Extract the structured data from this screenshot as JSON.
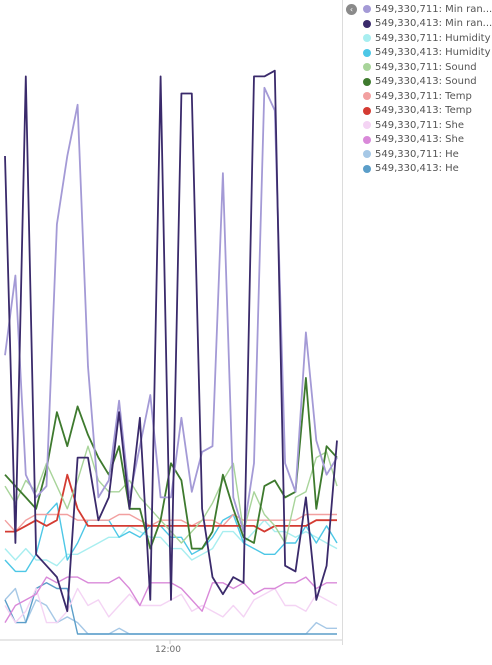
{
  "chart_data": {
    "type": "line",
    "x_ticks": [
      "12:00"
    ],
    "ylim": [
      0,
      100
    ],
    "legend_position": "right",
    "series": [
      {
        "name": "549,330,711: Min ran...",
        "color": "#a49ad6",
        "values": [
          49,
          63,
          28,
          24,
          26,
          72,
          84,
          93,
          47,
          24,
          27,
          41,
          24,
          33,
          42,
          24,
          24,
          38,
          25,
          32,
          33,
          81,
          24,
          18,
          30,
          96,
          92,
          30,
          25,
          53,
          34,
          28,
          31
        ]
      },
      {
        "name": "549,330,413: Min ran...",
        "color": "#3a2a6b",
        "values": [
          84,
          16,
          98,
          14,
          12,
          10,
          4,
          31,
          31,
          20,
          24,
          39,
          22,
          38,
          6,
          98,
          6,
          95,
          95,
          22,
          10,
          7,
          10,
          9,
          98,
          98,
          99,
          12,
          11,
          24,
          6,
          12,
          34
        ]
      },
      {
        "name": "549,330,711: Humidity",
        "color": "#a8eef0",
        "values": [
          15,
          13,
          15,
          13,
          13,
          12,
          14,
          14,
          15,
          16,
          17,
          17,
          19,
          18,
          17,
          17,
          15,
          15,
          13,
          14,
          15,
          18,
          18,
          16,
          18,
          20,
          18,
          18,
          17,
          18,
          17,
          16,
          15
        ]
      },
      {
        "name": "549,330,413: Humidity",
        "color": "#4dc7e6",
        "values": [
          13,
          11,
          11,
          14,
          21,
          23,
          13,
          16,
          20,
          20,
          20,
          17,
          18,
          17,
          19,
          19,
          17,
          17,
          14,
          15,
          17,
          20,
          21,
          16,
          15,
          14,
          14,
          16,
          16,
          19,
          16,
          19,
          16
        ]
      },
      {
        "name": "549,330,711: Sound",
        "color": "#a8d49a",
        "values": [
          26,
          23,
          27,
          25,
          30,
          26,
          22,
          27,
          33,
          27,
          25,
          25,
          27,
          24,
          22,
          20,
          18,
          16,
          18,
          20,
          23,
          27,
          30,
          18,
          25,
          21,
          19,
          16,
          24,
          25,
          31,
          32,
          26
        ]
      },
      {
        "name": "549,330,413: Sound",
        "color": "#3e7a2e",
        "values": [
          28,
          26,
          24,
          22,
          29,
          39,
          33,
          40,
          35,
          31,
          28,
          33,
          22,
          22,
          15,
          20,
          30,
          27,
          15,
          15,
          18,
          28,
          22,
          17,
          16,
          26,
          27,
          24,
          25,
          45,
          22,
          33,
          31
        ]
      },
      {
        "name": "549,330,711: Temp",
        "color": "#f2a0a0",
        "values": [
          20,
          18,
          20,
          21,
          21,
          21,
          21,
          20,
          20,
          20,
          20,
          21,
          21,
          20,
          19,
          20,
          20,
          20,
          19,
          20,
          20,
          19,
          21,
          20,
          20,
          20,
          20,
          20,
          20,
          21,
          21,
          21,
          21
        ]
      },
      {
        "name": "549,330,413: Temp",
        "color": "#d43b32",
        "values": [
          18,
          18,
          19,
          20,
          19,
          20,
          28,
          22,
          19,
          19,
          19,
          19,
          19,
          19,
          19,
          19,
          19,
          19,
          19,
          19,
          19,
          19,
          19,
          19,
          19,
          18,
          19,
          19,
          19,
          19,
          20,
          20,
          20
        ]
      },
      {
        "name": "549,330,711: She",
        "color": "#f4d4f4",
        "values": [
          5,
          2,
          4,
          8,
          2,
          2,
          4,
          8,
          5,
          6,
          3,
          5,
          7,
          5,
          5,
          5,
          6,
          7,
          4,
          5,
          4,
          3,
          5,
          3,
          6,
          7,
          8,
          5,
          5,
          4,
          7,
          6,
          5
        ]
      },
      {
        "name": "549,330,413: She",
        "color": "#d989d9",
        "values": [
          2,
          5,
          6,
          7,
          10,
          9,
          10,
          10,
          9,
          9,
          9,
          10,
          8,
          5,
          9,
          9,
          9,
          8,
          6,
          4,
          9,
          9,
          8,
          9,
          7,
          8,
          8,
          9,
          9,
          10,
          8,
          9,
          9
        ]
      },
      {
        "name": "549,330,711: He",
        "color": "#a6c8e6",
        "values": [
          6,
          8,
          2,
          6,
          5,
          2,
          3,
          2,
          0,
          0,
          0,
          1,
          0,
          0,
          0,
          0,
          0,
          0,
          0,
          0,
          0,
          0,
          0,
          0,
          0,
          0,
          0,
          0,
          0,
          0,
          2,
          1,
          1
        ]
      },
      {
        "name": "549,330,413: He",
        "color": "#5b9ec9",
        "values": [
          6,
          2,
          2,
          8,
          9,
          8,
          8,
          0,
          0,
          0,
          0,
          0,
          0,
          0,
          0,
          0,
          0,
          0,
          0,
          0,
          0,
          0,
          0,
          0,
          0,
          0,
          0,
          0,
          0,
          0,
          0,
          0,
          0
        ]
      }
    ]
  }
}
